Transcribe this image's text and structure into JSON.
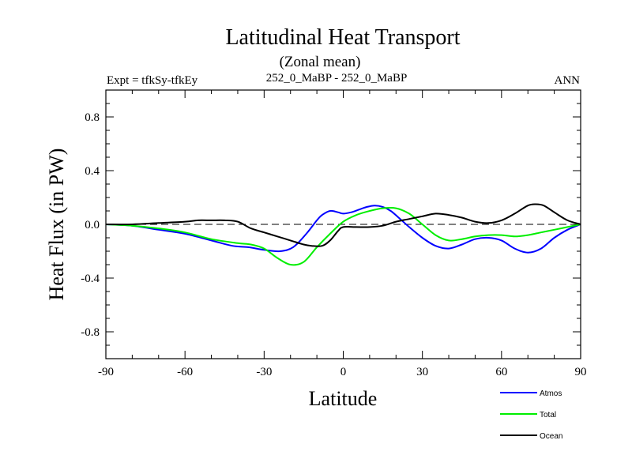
{
  "chart_data": {
    "type": "line",
    "title": "Latitudinal Heat Transport",
    "subtitle": "(Zonal mean)",
    "left_label": "Expt = tfkSy-tfkEy",
    "center_label": "252_0_MaBP - 252_0_MaBP",
    "right_label": "ANN",
    "xlabel": "Latitude",
    "ylabel": "Heat Flux (in PW)",
    "xlim": [
      -90,
      90
    ],
    "ylim": [
      -1.0,
      1.0
    ],
    "x_ticks": [
      -90,
      -60,
      -30,
      0,
      30,
      60,
      90
    ],
    "x_tick_labels": [
      "-90",
      "-60",
      "-30",
      "0",
      "30",
      "60",
      "90"
    ],
    "y_ticks": [
      -0.8,
      -0.4,
      0.0,
      0.4,
      0.8
    ],
    "y_tick_labels": [
      "-0.8",
      "-0.4",
      "0.0",
      "0.4",
      "0.8"
    ],
    "zero_line": true,
    "series": [
      {
        "name": "Atmos",
        "color": "#0000ff",
        "x": [
          -90,
          -80,
          -70,
          -60,
          -50,
          -42,
          -36,
          -30,
          -24,
          -19,
          -14,
          -10,
          -8,
          -5,
          -2,
          0,
          3,
          6,
          9,
          12,
          15,
          18,
          21,
          25,
          30,
          35,
          40,
          45,
          50,
          55,
          60,
          65,
          70,
          75,
          80,
          85,
          90
        ],
        "values": [
          0.0,
          -0.01,
          -0.04,
          -0.07,
          -0.12,
          -0.16,
          -0.17,
          -0.19,
          -0.2,
          -0.17,
          -0.07,
          0.03,
          0.07,
          0.1,
          0.09,
          0.08,
          0.09,
          0.11,
          0.13,
          0.14,
          0.13,
          0.1,
          0.05,
          -0.02,
          -0.1,
          -0.16,
          -0.18,
          -0.15,
          -0.11,
          -0.1,
          -0.12,
          -0.18,
          -0.21,
          -0.18,
          -0.1,
          -0.04,
          0.0
        ]
      },
      {
        "name": "Total",
        "color": "#00ee00",
        "x": [
          -90,
          -80,
          -70,
          -60,
          -50,
          -40,
          -35,
          -30,
          -25,
          -20,
          -15,
          -10,
          -5,
          0,
          5,
          10,
          15,
          20,
          25,
          30,
          35,
          40,
          45,
          50,
          55,
          60,
          65,
          70,
          75,
          80,
          85,
          90
        ],
        "values": [
          0.0,
          -0.01,
          -0.03,
          -0.06,
          -0.11,
          -0.14,
          -0.15,
          -0.18,
          -0.25,
          -0.3,
          -0.28,
          -0.17,
          -0.07,
          0.02,
          0.07,
          0.1,
          0.12,
          0.12,
          0.08,
          0.0,
          -0.08,
          -0.12,
          -0.11,
          -0.09,
          -0.08,
          -0.08,
          -0.09,
          -0.08,
          -0.06,
          -0.04,
          -0.02,
          0.0
        ]
      },
      {
        "name": "Ocean",
        "color": "#000000",
        "x": [
          -90,
          -80,
          -70,
          -60,
          -55,
          -50,
          -45,
          -40,
          -35,
          -30,
          -25,
          -20,
          -15,
          -12,
          -8,
          -5,
          -2,
          0,
          5,
          10,
          15,
          20,
          25,
          30,
          35,
          40,
          45,
          50,
          55,
          60,
          65,
          70,
          73,
          76,
          80,
          85,
          90
        ],
        "values": [
          0.0,
          0.0,
          0.01,
          0.02,
          0.03,
          0.03,
          0.03,
          0.02,
          -0.03,
          -0.06,
          -0.09,
          -0.12,
          -0.15,
          -0.16,
          -0.16,
          -0.12,
          -0.05,
          -0.02,
          -0.02,
          -0.02,
          -0.01,
          0.02,
          0.04,
          0.06,
          0.08,
          0.07,
          0.05,
          0.02,
          0.01,
          0.03,
          0.08,
          0.14,
          0.15,
          0.14,
          0.09,
          0.03,
          0.0
        ]
      }
    ],
    "legend": {
      "position": "bottom-right"
    }
  }
}
